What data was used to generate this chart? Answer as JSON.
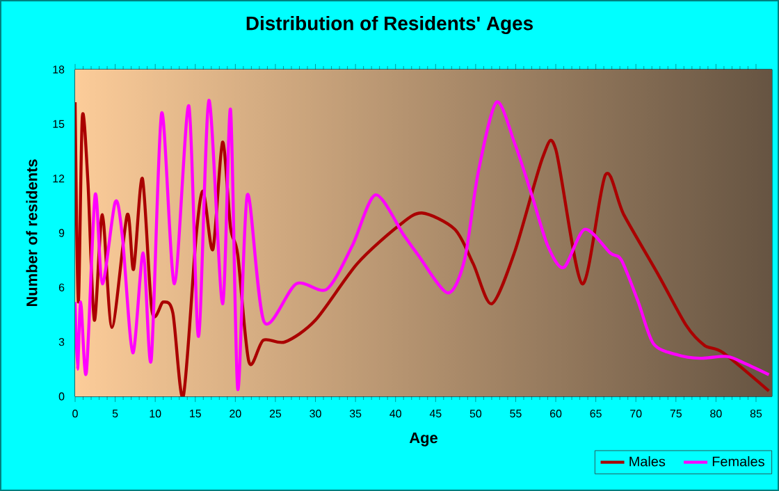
{
  "chart_data": {
    "type": "line",
    "title": "Distribution of Residents' Ages",
    "xlabel": "Age",
    "ylabel": "Number of residents",
    "xlim": [
      0,
      87
    ],
    "xticks": [
      0,
      5,
      10,
      15,
      20,
      25,
      30,
      35,
      40,
      45,
      50,
      55,
      60,
      65,
      70,
      75,
      80,
      85
    ],
    "ylim": [
      0,
      18
    ],
    "yticks": [
      0,
      3,
      6,
      9,
      12,
      15,
      18
    ],
    "grid": true,
    "legend": "bottom right",
    "marker": "none",
    "line_style": "solid",
    "series": [
      {
        "name": "Males",
        "color": "#aa0000",
        "x": [
          0,
          0.4,
          0.9,
          1.6,
          2.4,
          3.4,
          4.6,
          6.5,
          7.3,
          8.4,
          9.6,
          11,
          12.2,
          13.5,
          15.1,
          16,
          17.2,
          18.4,
          19.4,
          20.3,
          21.7,
          23.5,
          26.2,
          30,
          35.2,
          40.4,
          43.3,
          47.4,
          49.7,
          52,
          54.9,
          58.4,
          60,
          63.3,
          66.2,
          68.5,
          72.8,
          76.3,
          78.6,
          80.9,
          86.6
        ],
        "values": [
          16.2,
          5.2,
          15.4,
          11.8,
          4.2,
          10,
          3.8,
          10,
          7,
          12,
          4.7,
          5.2,
          4.6,
          0,
          8.8,
          11.3,
          8.1,
          14,
          9.3,
          7.8,
          1.9,
          3.1,
          3,
          4.2,
          7.3,
          9.4,
          10.1,
          9.2,
          7.3,
          5.1,
          8,
          13.2,
          13.6,
          6.2,
          12.2,
          10,
          6.7,
          3.9,
          2.8,
          2.4,
          0.3
        ]
      },
      {
        "name": "Females",
        "color": "#ff00ff",
        "x": [
          0,
          0.3,
          0.7,
          1.4,
          2.5,
          3.4,
          5,
          5.9,
          7.2,
          8.5,
          9.5,
          10.8,
          12.4,
          14.2,
          15.4,
          16.7,
          18.4,
          19.4,
          20.3,
          21.5,
          23.6,
          27.6,
          31.4,
          34.6,
          37.5,
          41,
          42.8,
          46.5,
          48.6,
          50.3,
          52.6,
          54.9,
          57,
          59,
          61,
          63.6,
          66.8,
          68.2,
          70.3,
          72.2,
          75.1,
          78,
          81.4,
          83.7,
          86.6
        ],
        "values": [
          5.2,
          1.5,
          5.2,
          1.3,
          11.1,
          6.2,
          10.7,
          8.8,
          2.4,
          7.9,
          2,
          15.6,
          6.2,
          16,
          3.3,
          16.3,
          5.1,
          15.8,
          0.4,
          11.1,
          4.1,
          6.2,
          5.9,
          8.3,
          11.1,
          8.9,
          7.8,
          5.7,
          7.5,
          12.3,
          16.2,
          13.9,
          11.1,
          8.3,
          7.1,
          9.2,
          7.9,
          7.5,
          5.2,
          2.9,
          2.3,
          2.1,
          2.2,
          1.8,
          1.2
        ]
      }
    ]
  }
}
